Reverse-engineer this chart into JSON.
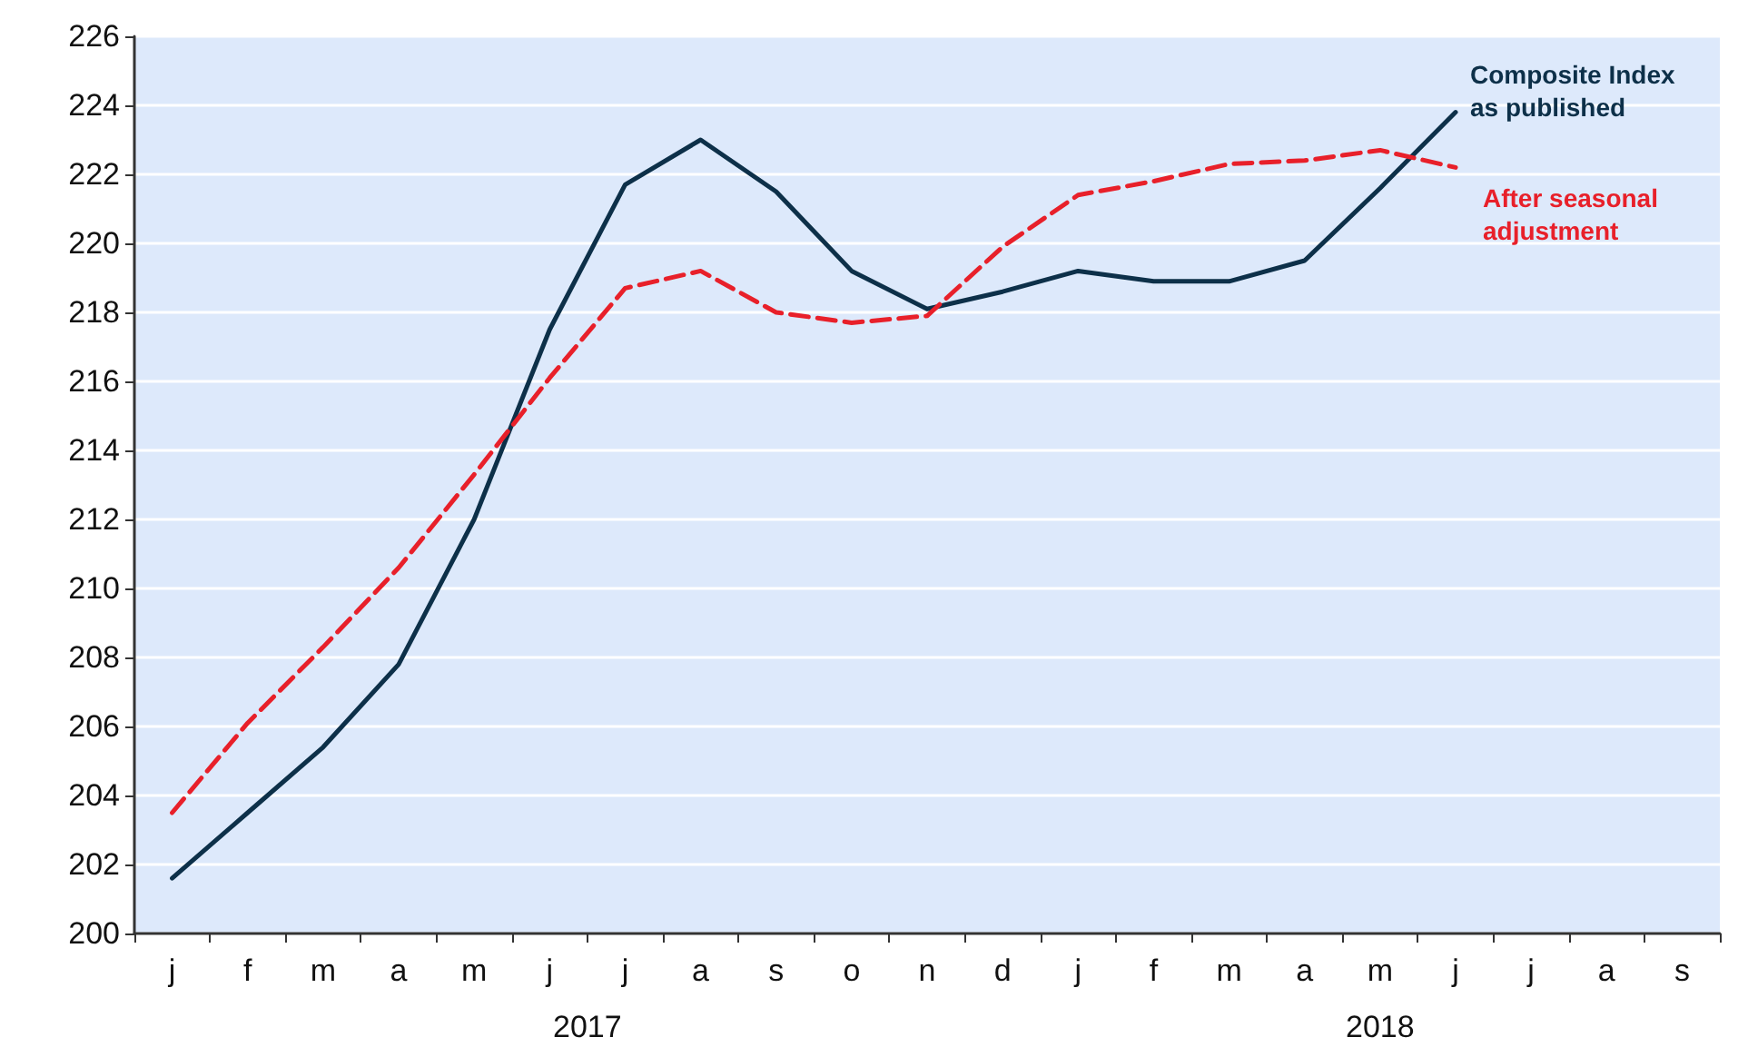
{
  "chart_data": {
    "type": "line",
    "categories": [
      "j",
      "f",
      "m",
      "a",
      "m",
      "j",
      "j",
      "a",
      "s",
      "o",
      "n",
      "d",
      "j",
      "f",
      "m",
      "a",
      "m",
      "j",
      "j",
      "a",
      "s"
    ],
    "series": [
      {
        "name": "Composite Index\nas published",
        "color": "#0d3049",
        "line_style": "solid",
        "values": [
          201.6,
          203.5,
          205.4,
          207.8,
          212.0,
          217.5,
          221.7,
          223.0,
          221.5,
          219.2,
          218.1,
          218.6,
          219.2,
          218.9,
          218.9,
          219.5,
          221.6,
          223.8,
          null,
          null,
          null
        ]
      },
      {
        "name": "After seasonal\nadjustment",
        "color": "#e8202a",
        "line_style": "dashed",
        "values": [
          203.5,
          206.1,
          208.3,
          210.6,
          213.3,
          216.1,
          218.7,
          219.2,
          218.0,
          217.7,
          217.9,
          219.9,
          221.4,
          221.8,
          222.3,
          222.4,
          222.7,
          222.2,
          null,
          null,
          null
        ]
      }
    ],
    "ylim": [
      200,
      226
    ],
    "yticks": [
      200,
      202,
      204,
      206,
      208,
      210,
      212,
      214,
      216,
      218,
      220,
      222,
      224,
      226
    ],
    "grid": "y",
    "marker": "none",
    "annotations": [
      "2017",
      "2018"
    ]
  }
}
